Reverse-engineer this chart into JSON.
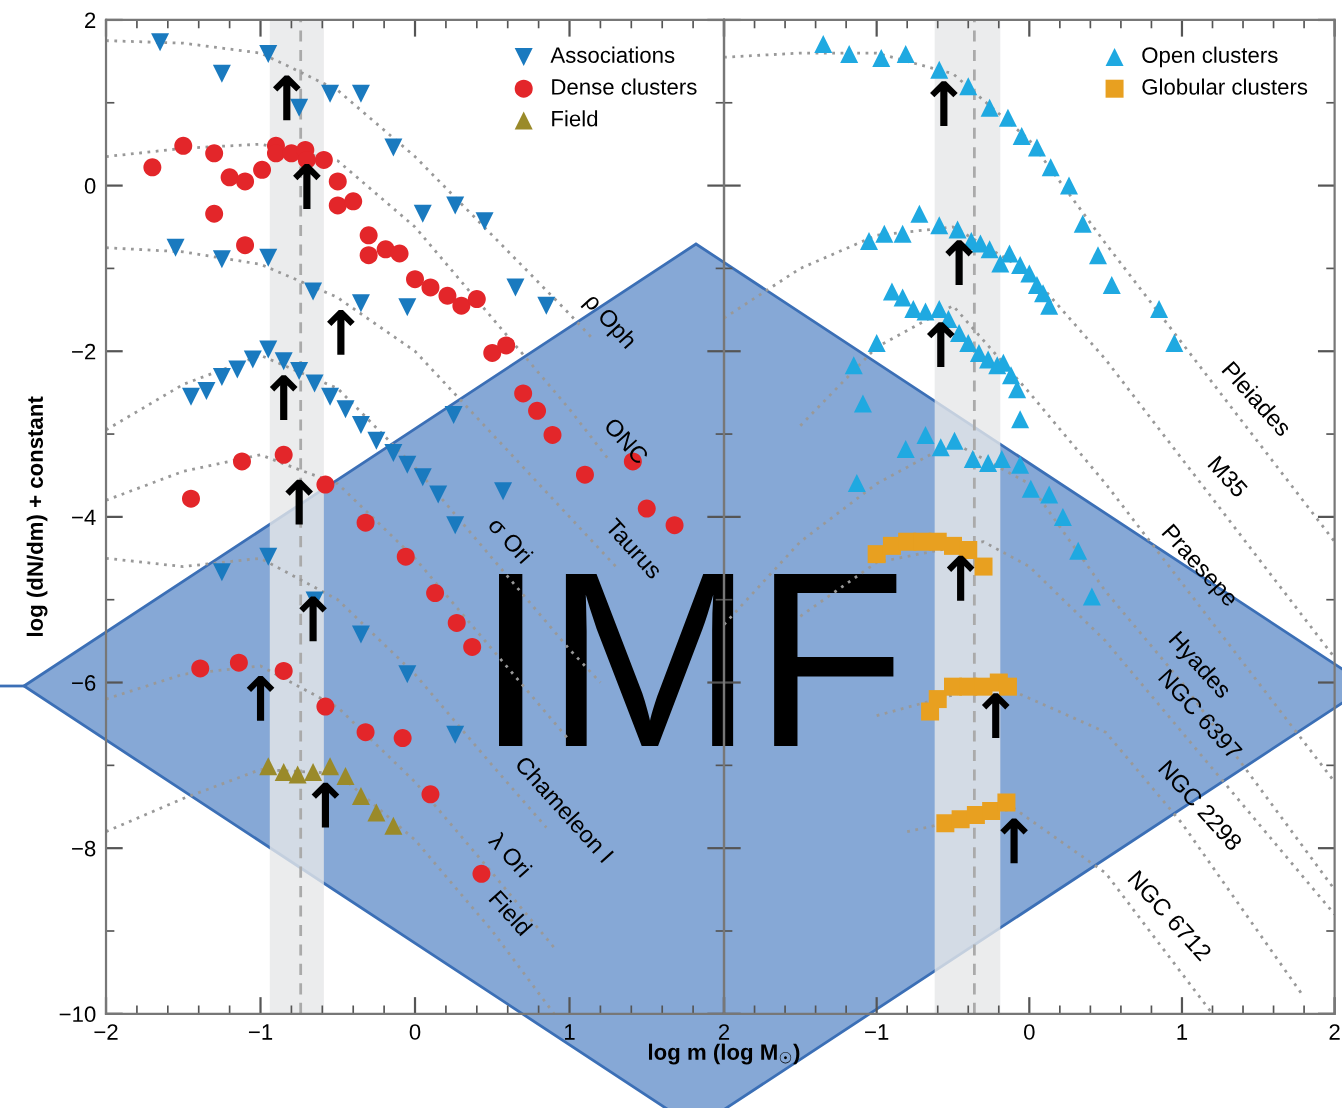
{
  "chart_data": [
    {
      "type": "scatter",
      "ylabel": "log (dN/dm) + constant",
      "xlabel": "log m (log M$_{☉}$)",
      "xlim": [
        -2,
        2
      ],
      "ylim": [
        -10,
        2
      ],
      "xticks": [
        -2,
        -1,
        0,
        1,
        2
      ],
      "yticks": [
        -10,
        -8,
        -6,
        -4,
        -2,
        0,
        2
      ],
      "legend": "top right",
      "grid": false,
      "series": [
        {
          "name": "Associations",
          "color": "#1a7abf",
          "marker": "triangle_down",
          "x": [
            -1.65,
            -1.25,
            -0.95,
            -0.75,
            -0.55,
            -0.35,
            -0.14,
            0.05,
            0.26,
            0.45,
            0.65,
            0.85,
            -1.55,
            -1.25,
            -0.95,
            -0.66,
            -0.35,
            -0.05,
            0.25,
            0.57,
            -1.45,
            -1.35,
            -1.25,
            -1.15,
            -1.05,
            -0.95,
            -0.85,
            -0.75,
            -0.65,
            -0.55,
            -0.45,
            -0.35,
            -0.25,
            -0.14,
            -0.05,
            0.05,
            0.15,
            0.26,
            -1.25,
            -0.95,
            -0.65,
            -0.35,
            -0.05,
            0.26
          ],
          "values": [
            1.73,
            1.35,
            1.59,
            0.94,
            1.11,
            1.11,
            0.46,
            -0.34,
            -0.24,
            -0.43,
            -1.23,
            -1.45,
            -0.75,
            -0.89,
            -0.87,
            -1.28,
            -1.42,
            -1.47,
            -2.77,
            -3.69,
            -2.55,
            -2.48,
            -2.31,
            -2.22,
            -2.1,
            -1.98,
            -2.12,
            -2.24,
            -2.39,
            -2.55,
            -2.7,
            -2.89,
            -3.08,
            -3.23,
            -3.37,
            -3.52,
            -3.73,
            -4.1,
            -4.67,
            -4.48,
            -5.01,
            -5.42,
            -5.9,
            -6.63
          ]
        },
        {
          "name": "Dense clusters",
          "color": "#e3262a",
          "marker": "circle",
          "x": [
            -1.7,
            -1.5,
            -1.3,
            -1.2,
            -1.1,
            -0.99,
            -0.9,
            -0.9,
            -0.8,
            -0.71,
            -0.7,
            -0.59,
            -0.5,
            -0.5,
            -0.4,
            -0.3,
            -0.3,
            -0.19,
            -0.1,
            0,
            0.1,
            0.21,
            0.3,
            0.4,
            0.5,
            0.59,
            -1.3,
            -1.1,
            0.7,
            0.79,
            0.89,
            1.1,
            1.41,
            1.5,
            1.68,
            -1.45,
            -1.12,
            -0.85,
            -0.58,
            -0.32,
            -0.06,
            0.13,
            0.27,
            0.37,
            -1.39,
            -1.14,
            -0.85,
            -0.58,
            -0.32,
            -0.08,
            0.1,
            0.43
          ],
          "values": [
            0.22,
            0.48,
            0.39,
            0.1,
            0.05,
            0.19,
            0.48,
            0.39,
            0.39,
            0.43,
            0.31,
            0.31,
            0.05,
            -0.24,
            -0.19,
            -0.6,
            -0.84,
            -0.77,
            -0.82,
            -1.13,
            -1.23,
            -1.33,
            -1.45,
            -1.37,
            -2.02,
            -1.93,
            -0.34,
            -0.72,
            -2.51,
            -2.72,
            -3.01,
            -3.49,
            -3.33,
            -3.9,
            -4.1,
            -3.78,
            -3.33,
            -3.25,
            -3.61,
            -4.07,
            -4.48,
            -4.92,
            -5.28,
            -5.57,
            -5.83,
            -5.76,
            -5.86,
            -6.29,
            -6.6,
            -6.67,
            -7.35,
            -8.31
          ]
        },
        {
          "name": "Field",
          "color": "#9a8a2a",
          "marker": "triangle",
          "x": [
            -0.95,
            -0.85,
            -0.76,
            -0.66,
            -0.55,
            -0.45,
            -0.35,
            -0.25,
            -0.14
          ],
          "values": [
            -7.01,
            -7.08,
            -7.11,
            -7.08,
            -7.01,
            -7.13,
            -7.37,
            -7.57,
            -7.73
          ]
        },
        {
          "type": "line",
          "color": "#999999",
          "line_style": "dotted",
          "x": [
            -2,
            -1.5,
            -1,
            -0.83,
            -0.5,
            0,
            0.5,
            1,
            1.15
          ],
          "values": [
            1.75,
            1.72,
            1.6,
            1.45,
            1.15,
            0.35,
            -0.6,
            -1.55,
            -1.85
          ]
        },
        {
          "type": "line",
          "color": "#999999",
          "line_style": "dotted",
          "x": [
            -2,
            -1.5,
            -1,
            -0.7,
            -0.5,
            0,
            0.5,
            1,
            1.25
          ],
          "values": [
            0.35,
            0.45,
            0.5,
            0.38,
            0.3,
            -0.5,
            -1.6,
            -2.7,
            -3.3
          ]
        },
        {
          "type": "line",
          "color": "#999999",
          "line_style": "dotted",
          "x": [
            -2,
            -1.5,
            -1,
            -0.5,
            -0.48,
            0,
            0.5,
            1,
            1.3
          ],
          "values": [
            -0.75,
            -0.8,
            -0.95,
            -1.35,
            -1.38,
            -2.0,
            -3.0,
            -4.0,
            -4.6
          ]
        },
        {
          "type": "line",
          "color": "#999999",
          "line_style": "dotted",
          "x": [
            -2,
            -1.5,
            -1,
            -0.85,
            -0.5,
            0,
            0.5,
            1,
            1.2
          ],
          "values": [
            -2.95,
            -2.4,
            -2.05,
            -2.17,
            -2.45,
            -3.4,
            -4.5,
            -5.6,
            -6.0
          ]
        },
        {
          "type": "line",
          "color": "#999999",
          "line_style": "dotted",
          "x": [
            -2,
            -1.5,
            -1,
            -0.75,
            -0.5,
            0,
            0.5,
            1
          ],
          "values": [
            -3.8,
            -3.45,
            -3.25,
            -3.43,
            -3.6,
            -4.5,
            -5.6,
            -6.7
          ]
        },
        {
          "type": "line",
          "color": "#999999",
          "line_style": "dotted",
          "x": [
            -2,
            -1.5,
            -1,
            -0.66,
            -0.5,
            0,
            0.5,
            0.85
          ],
          "values": [
            -4.5,
            -4.6,
            -4.5,
            -4.84,
            -5.0,
            -5.9,
            -7.0,
            -7.75
          ]
        },
        {
          "type": "line",
          "color": "#999999",
          "line_style": "dotted",
          "x": [
            -2,
            -1.5,
            -1,
            -0.5,
            0,
            0.5,
            0.9
          ],
          "values": [
            -6.2,
            -5.9,
            -5.8,
            -6.3,
            -7.2,
            -8.3,
            -9.2
          ]
        },
        {
          "type": "line",
          "color": "#999999",
          "line_style": "dotted",
          "x": [
            -2,
            -1.5,
            -1,
            -0.58,
            -0.5,
            0,
            0.5,
            0.9
          ],
          "values": [
            -7.8,
            -7.4,
            -7.05,
            -7.09,
            -7.1,
            -7.9,
            -9.0,
            -10
          ]
        }
      ],
      "bands": [
        {
          "axis": "x",
          "from": -0.94,
          "to": -0.59,
          "color": "#e6e7e8"
        }
      ],
      "ref_lines": [
        {
          "axis": "x",
          "value": -0.74,
          "color": "#aaaaaa",
          "line_style": "dashed"
        }
      ],
      "annotations": [
        "IMF",
        {
          "text": "ρ Oph",
          "x": 1.15,
          "y": -1.85
        },
        {
          "text": "ONC",
          "x": 1.25,
          "y": -3.3
        },
        {
          "text": "Taurus",
          "x": 1.3,
          "y": -4.6
        },
        {
          "text": "σ Ori",
          "x": 0.5,
          "y": -4.5
        },
        {
          "text": "Chameleon I",
          "x": 0.85,
          "y": -7.75
        },
        {
          "text": "λ Ori",
          "x": 0.5,
          "y": -8.3
        },
        {
          "text": "Field",
          "x": 0.5,
          "y": -9.0
        },
        {
          "text": "↑",
          "x": -0.83,
          "y": 1.45
        },
        {
          "text": "↑",
          "x": -0.7,
          "y": 0.38
        },
        {
          "text": "↑",
          "x": -0.48,
          "y": -1.38
        },
        {
          "text": "↑",
          "x": -0.85,
          "y": -2.17
        },
        {
          "text": "↑",
          "x": -0.75,
          "y": -3.43
        },
        {
          "text": "↑",
          "x": -0.66,
          "y": -4.84
        },
        {
          "text": "↑",
          "x": -1.0,
          "y": -5.8
        },
        {
          "text": "↑",
          "x": -0.58,
          "y": -7.09
        }
      ]
    },
    {
      "type": "scatter",
      "xlim": [
        -2,
        2
      ],
      "ylim": [
        -10,
        2
      ],
      "xticks": [
        {
          "value": -2,
          "label": null
        },
        -1,
        0,
        1,
        2
      ],
      "yticks": [
        {
          "value": -10,
          "label": null
        },
        {
          "value": -8,
          "label": null
        },
        {
          "value": -6,
          "label": null
        },
        {
          "value": -4,
          "label": null
        },
        {
          "value": -2,
          "label": null
        },
        {
          "value": 0,
          "label": null
        },
        {
          "value": 2,
          "label": null
        }
      ],
      "tick_labels": "x",
      "legend": "top right",
      "grid": false,
      "series": [
        {
          "name": "Open clusters",
          "color": "#1fa9e1",
          "marker": "triangle",
          "x": [
            -1.35,
            -1.18,
            -0.97,
            -0.81,
            -0.59,
            -0.4,
            -0.26,
            -0.14,
            -0.05,
            0.05,
            0.14,
            0.26,
            0.35,
            0.45,
            0.54,
            0.85,
            0.95,
            -1.05,
            -0.95,
            -0.83,
            -0.72,
            -0.59,
            -0.47,
            -0.38,
            -0.32,
            -0.26,
            -0.19,
            -0.13,
            -0.06,
            0,
            0.05,
            0.09,
            0.13,
            -0.9,
            -0.83,
            -0.76,
            -0.68,
            -0.59,
            -0.53,
            -0.46,
            -0.4,
            -0.33,
            -0.27,
            -0.21,
            -0.17,
            -0.12,
            -0.08,
            -0.06,
            -1.0,
            -1.15,
            -1.09,
            -0.81,
            -0.68,
            -0.58,
            -0.49,
            -0.37,
            -0.27,
            -0.18,
            -0.06,
            0.01,
            0.13,
            0.22,
            0.32,
            -1.13,
            0.41
          ],
          "values": [
            1.71,
            1.59,
            1.54,
            1.59,
            1.4,
            1.2,
            0.94,
            0.82,
            0.6,
            0.46,
            0.22,
            0,
            -0.46,
            -0.84,
            -1.2,
            -1.49,
            -1.9,
            -0.67,
            -0.58,
            -0.58,
            -0.34,
            -0.48,
            -0.53,
            -0.67,
            -0.7,
            -0.77,
            -0.94,
            -0.82,
            -0.96,
            -1.06,
            -1.2,
            -1.3,
            -1.45,
            -1.28,
            -1.35,
            -1.49,
            -1.52,
            -1.49,
            -1.61,
            -1.78,
            -1.9,
            -2.02,
            -2.1,
            -2.17,
            -2.14,
            -2.29,
            -2.46,
            -2.82,
            -1.9,
            -2.17,
            -2.63,
            -3.18,
            -3.01,
            -3.16,
            -3.08,
            -3.3,
            -3.35,
            -3.3,
            -3.37,
            -3.66,
            -3.73,
            -4.0,
            -4.41,
            -3.59,
            -4.96
          ]
        },
        {
          "name": "Globular clusters",
          "color": "#e8a020",
          "marker": "square",
          "x": [
            -1.0,
            -0.9,
            -0.8,
            -0.7,
            -0.6,
            -0.5,
            -0.4,
            -0.3,
            -0.65,
            -0.6,
            -0.5,
            -0.4,
            -0.3,
            -0.2,
            -0.14,
            -0.55,
            -0.45,
            -0.35,
            -0.25,
            -0.15
          ],
          "values": [
            -4.45,
            -4.35,
            -4.3,
            -4.3,
            -4.3,
            -4.35,
            -4.4,
            -4.6,
            -6.35,
            -6.2,
            -6.05,
            -6.05,
            -6.05,
            -6.0,
            -6.05,
            -7.7,
            -7.65,
            -7.6,
            -7.55,
            -7.45
          ]
        },
        {
          "type": "line",
          "color": "#999999",
          "line_style": "dotted",
          "x": [
            -2,
            -1.5,
            -1,
            -0.56,
            -0.5,
            0,
            0.5,
            1,
            1.37,
            1.5,
            2
          ],
          "values": [
            1.55,
            1.6,
            1.6,
            1.38,
            1.35,
            0.55,
            -0.7,
            -1.9,
            -2.79,
            -3.1,
            -4.3
          ]
        },
        {
          "type": "line",
          "color": "#999999",
          "line_style": "dotted",
          "x": [
            -2,
            -1.5,
            -1,
            -0.5,
            -0.46,
            0,
            0.5,
            1,
            1.18,
            1.5,
            2
          ],
          "values": [
            -1.6,
            -1.0,
            -0.6,
            -0.5,
            -0.54,
            -1.05,
            -2.1,
            -3.3,
            -3.73,
            -4.5,
            -5.7
          ]
        },
        {
          "type": "line",
          "color": "#999999",
          "line_style": "dotted",
          "x": [
            -1.5,
            -1,
            -0.58,
            -0.5,
            0,
            0.5,
            1,
            1.5,
            2
          ],
          "values": [
            -2.9,
            -1.95,
            -1.53,
            -1.45,
            -2.5,
            -3.6,
            -4.8,
            -6.0,
            -7.2
          ]
        },
        {
          "type": "line",
          "color": "#999999",
          "line_style": "dotted",
          "x": [
            -2,
            -1.5,
            -1,
            -0.5,
            0,
            0.5,
            1,
            2
          ],
          "values": [
            -5.3,
            -4.3,
            -3.6,
            -3.1,
            -3.6,
            -4.9,
            -6.0,
            -8.5
          ]
        },
        {
          "type": "line",
          "color": "#999999",
          "line_style": "dotted",
          "x": [
            -1.5,
            -1,
            -0.45,
            -0.3,
            0,
            0.5,
            1,
            2
          ],
          "values": [
            -5.2,
            -4.55,
            -4.35,
            -4.3,
            -4.6,
            -5.5,
            -6.6,
            -8.8
          ]
        },
        {
          "type": "line",
          "color": "#999999",
          "line_style": "dotted",
          "x": [
            -1,
            -0.22,
            0.5,
            1,
            1.8
          ],
          "values": [
            -6.4,
            -6.01,
            -6.6,
            -7.7,
            -9.8
          ]
        },
        {
          "type": "line",
          "color": "#999999",
          "line_style": "dotted",
          "x": [
            -0.8,
            -0.1,
            0.5,
            0.8,
            1.2
          ],
          "values": [
            -7.8,
            -7.52,
            -8.3,
            -9.03,
            -10
          ]
        }
      ],
      "bands": [
        {
          "axis": "x",
          "from": -0.62,
          "to": -0.19,
          "color": "#e6e7e8"
        }
      ],
      "ref_lines": [
        {
          "axis": "x",
          "value": -0.36,
          "color": "#aaaaaa",
          "line_style": "dashed"
        }
      ],
      "annotations": [
        {
          "text": "Pleiades",
          "x": 1.37,
          "y": -2.79
        },
        {
          "text": "M35",
          "x": 1.18,
          "y": -3.73
        },
        {
          "text": "Praesepe",
          "x": 1.0,
          "y": -4.8
        },
        {
          "text": "Hyades",
          "x": 1.0,
          "y": -6.0
        },
        {
          "text": "NGC 6397",
          "x": 1.0,
          "y": -6.6
        },
        {
          "text": "NGC 2298",
          "x": 1.0,
          "y": -7.7
        },
        {
          "text": "NGC 6712",
          "x": 0.8,
          "y": -9.03
        },
        {
          "text": "↑",
          "x": -0.56,
          "y": 1.38
        },
        {
          "text": "↑",
          "x": -0.46,
          "y": -0.54
        },
        {
          "text": "↑",
          "x": -0.58,
          "y": -1.53
        },
        {
          "text": "↑",
          "x": -0.45,
          "y": -4.35
        },
        {
          "text": "↑",
          "x": -0.22,
          "y": -6.01
        },
        {
          "text": "↑",
          "x": -0.1,
          "y": -7.52
        }
      ]
    }
  ]
}
